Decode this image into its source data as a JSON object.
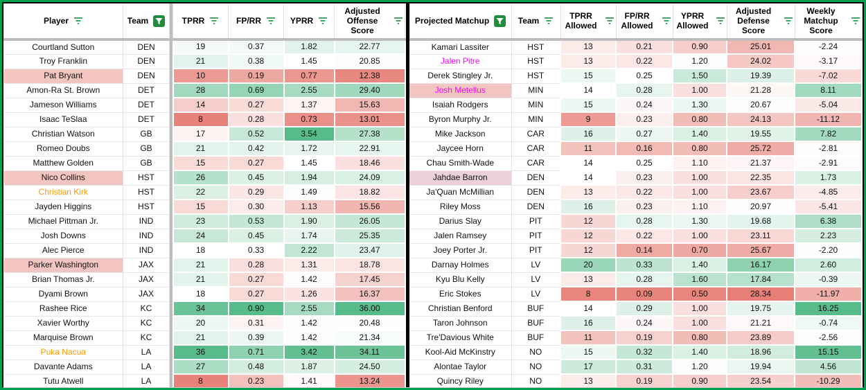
{
  "colors": {
    "scale_red": "#e67c73",
    "scale_green": "#57bb8a",
    "white": "#ffffff",
    "highlight_pink_bg": "#f3c5c0",
    "highlight_purple_bg": "#ead1dc",
    "orange_text": "#ff9900",
    "magenta_text": "#ff00ff",
    "filter_green": "#1e8e3e",
    "outer_border_green": "#00a04e",
    "freeze_bar_gray": "#bdbdbd"
  },
  "left_table": {
    "freeze_sep_after": 1,
    "columns": [
      {
        "key": "player",
        "label": "Player",
        "filter": "lines",
        "width": 172,
        "type": "text"
      },
      {
        "key": "team",
        "label": "Team",
        "filter": "funnel",
        "width": 67,
        "type": "text"
      },
      {
        "key": "tprr",
        "label": "TPRR",
        "filter": "lines",
        "width": 80,
        "type": "num",
        "scale": {
          "min": 7.5,
          "mid": 18,
          "max": 36
        }
      },
      {
        "key": "fprr",
        "label": "FP/RR",
        "filter": "lines",
        "width": 80,
        "type": "num",
        "scale": {
          "min": 0.12,
          "mid": 0.33,
          "max": 0.9
        }
      },
      {
        "key": "yprr",
        "label": "YPRR",
        "filter": "lines",
        "width": 73,
        "type": "num",
        "scale": {
          "min": 0.6,
          "mid": 1.44,
          "max": 3.54
        }
      },
      {
        "key": "adj",
        "label": "Adjusted Offense Score",
        "filter": "lines",
        "width": 102,
        "type": "num",
        "scale": {
          "min": 11.5,
          "mid": 20.6,
          "max": 36
        }
      }
    ],
    "rows": [
      {
        "player": "Courtland Sutton",
        "team": "DEN",
        "tprr": "19",
        "fprr": "0.37",
        "yprr": "1.82",
        "adj": "22.77"
      },
      {
        "player": "Troy Franklin",
        "team": "DEN",
        "tprr": "21",
        "fprr": "0.38",
        "yprr": "1.45",
        "adj": "20.85"
      },
      {
        "player": "Pat Bryant",
        "style": "pink",
        "team": "DEN",
        "tprr": "10",
        "fprr": "0.19",
        "yprr": "0.77",
        "adj": "12.38"
      },
      {
        "player": "Amon-Ra St. Brown",
        "team": "DET",
        "tprr": "28",
        "fprr": "0.69",
        "yprr": "2.55",
        "adj": "29.40"
      },
      {
        "player": "Jameson Williams",
        "team": "DET",
        "tprr": "14",
        "fprr": "0.27",
        "yprr": "1.37",
        "adj": "15.63"
      },
      {
        "player": "Isaac TeSlaa",
        "team": "DET",
        "tprr": "8",
        "fprr": "0.28",
        "yprr": "0.73",
        "adj": "13.01"
      },
      {
        "player": "Christian Watson",
        "team": "GB",
        "tprr": "17",
        "fprr": "0.52",
        "yprr": "3.54",
        "adj": "27.38"
      },
      {
        "player": "Romeo Doubs",
        "team": "GB",
        "tprr": "21",
        "fprr": "0.42",
        "yprr": "1.72",
        "adj": "22.91"
      },
      {
        "player": "Matthew Golden",
        "team": "GB",
        "tprr": "15",
        "fprr": "0.27",
        "yprr": "1.45",
        "adj": "18.46"
      },
      {
        "player": "Nico Collins",
        "style": "pink",
        "team": "HST",
        "tprr": "26",
        "fprr": "0.45",
        "yprr": "1.94",
        "adj": "24.09"
      },
      {
        "player": "Christian Kirk",
        "style": "orange",
        "team": "HST",
        "tprr": "22",
        "fprr": "0.29",
        "yprr": "1.49",
        "adj": "18.82"
      },
      {
        "player": "Jayden Higgins",
        "team": "HST",
        "tprr": "15",
        "fprr": "0.30",
        "yprr": "1.13",
        "adj": "15.56"
      },
      {
        "player": "Michael Pittman Jr.",
        "team": "IND",
        "tprr": "23",
        "fprr": "0.53",
        "yprr": "1.90",
        "adj": "26.05"
      },
      {
        "player": "Josh Downs",
        "team": "IND",
        "tprr": "24",
        "fprr": "0.45",
        "yprr": "1.74",
        "adj": "25.35"
      },
      {
        "player": "Alec Pierce",
        "team": "IND",
        "tprr": "18",
        "fprr": "0.33",
        "yprr": "2.22",
        "adj": "23.47"
      },
      {
        "player": "Parker Washington",
        "style": "pink",
        "team": "JAX",
        "tprr": "21",
        "fprr": "0.28",
        "yprr": "1.31",
        "adj": "18.78"
      },
      {
        "player": "Brian Thomas Jr.",
        "team": "JAX",
        "tprr": "21",
        "fprr": "0.27",
        "yprr": "1.42",
        "adj": "17.45"
      },
      {
        "player": "Dyami Brown",
        "team": "JAX",
        "tprr": "18",
        "fprr": "0.27",
        "yprr": "1.26",
        "adj": "16.37"
      },
      {
        "player": "Rashee Rice",
        "team": "KC",
        "tprr": "34",
        "fprr": "0.90",
        "yprr": "2.55",
        "adj": "36.00"
      },
      {
        "player": "Xavier Worthy",
        "team": "KC",
        "tprr": "20",
        "fprr": "0.31",
        "yprr": "1.42",
        "adj": "20.48"
      },
      {
        "player": "Marquise Brown",
        "team": "KC",
        "tprr": "21",
        "fprr": "0.39",
        "yprr": "1.42",
        "adj": "21.34"
      },
      {
        "player": "Puka Nacua",
        "style": "orange",
        "team": "LA",
        "tprr": "36",
        "fprr": "0.71",
        "yprr": "3.42",
        "adj": "34.11"
      },
      {
        "player": "Davante Adams",
        "team": "LA",
        "tprr": "27",
        "fprr": "0.48",
        "yprr": "1.87",
        "adj": "24.50"
      },
      {
        "player": "Tutu Atwell",
        "team": "LA",
        "tprr": "8",
        "fprr": "0.23",
        "yprr": "1.41",
        "adj": "13.24"
      }
    ]
  },
  "right_table": {
    "columns": [
      {
        "key": "player",
        "label": "Projected Matchup",
        "filter": "funnel",
        "width": 147,
        "type": "text"
      },
      {
        "key": "team",
        "label": "Team",
        "filter": "lines",
        "width": 71,
        "type": "text"
      },
      {
        "key": "tprr",
        "label": "TPRR Allowed",
        "filter": "lines",
        "width": 80,
        "type": "num",
        "scale": {
          "min": 7.5,
          "mid": 14,
          "max": 24
        }
      },
      {
        "key": "fprr",
        "label": "FP/RR Allowed",
        "filter": "lines",
        "width": 82,
        "type": "num",
        "scale": {
          "min": 0.08,
          "mid": 0.25,
          "max": 0.45
        }
      },
      {
        "key": "yprr",
        "label": "YPRR Allowed",
        "filter": "lines",
        "width": 78,
        "type": "num",
        "scale": {
          "min": 0.45,
          "mid": 1.17,
          "max": 2.2
        }
      },
      {
        "key": "def",
        "label": "Adjusted Defense Score",
        "filter": "lines",
        "width": 98,
        "type": "num",
        "scale": {
          "min": 14,
          "mid": 20.8,
          "max": 28.5,
          "reverse": true
        }
      },
      {
        "key": "weekly",
        "label": "Weekly Matchup Score",
        "filter": "lines",
        "width": 97,
        "type": "num",
        "scale": {
          "min": -18,
          "mid": -2.5,
          "max": 16.25
        }
      }
    ],
    "rows": [
      {
        "player": "Kamari Lassiter",
        "team": "HST",
        "tprr": "13",
        "fprr": "0.21",
        "yprr": "0.90",
        "def": "25.01",
        "weekly": "-2.24"
      },
      {
        "player": "Jalen Pitre",
        "style": "magenta",
        "team": "HST",
        "tprr": "13",
        "fprr": "0.22",
        "yprr": "1.20",
        "def": "24.02",
        "weekly": "-3.17"
      },
      {
        "player": "Derek Stingley Jr.",
        "team": "HST",
        "tprr": "15",
        "fprr": "0.25",
        "yprr": "1.50",
        "def": "19.39",
        "weekly": "-7.02"
      },
      {
        "player": "Josh Metellus",
        "style": "pink-magenta",
        "team": "MIN",
        "tprr": "14",
        "fprr": "0.28",
        "yprr": "1.00",
        "def": "21.28",
        "weekly": "8.11"
      },
      {
        "player": "Isaiah Rodgers",
        "team": "MIN",
        "tprr": "15",
        "fprr": "0.24",
        "yprr": "1.30",
        "def": "20.67",
        "weekly": "-5.04"
      },
      {
        "player": "Byron Murphy Jr.",
        "team": "MIN",
        "tprr": "9",
        "fprr": "0.23",
        "yprr": "0.80",
        "def": "24.13",
        "weekly": "-11.12"
      },
      {
        "player": "Mike Jackson",
        "team": "CAR",
        "tprr": "16",
        "fprr": "0.27",
        "yprr": "1.40",
        "def": "19.55",
        "weekly": "7.82"
      },
      {
        "player": "Jaycee Horn",
        "team": "CAR",
        "tprr": "11",
        "fprr": "0.16",
        "yprr": "0.80",
        "def": "25.72",
        "weekly": "-2.81"
      },
      {
        "player": "Chau Smith-Wade",
        "team": "CAR",
        "tprr": "14",
        "fprr": "0.25",
        "yprr": "1.10",
        "def": "21.37",
        "weekly": "-2.91"
      },
      {
        "player": "Jahdae Barron",
        "style": "purple",
        "team": "DEN",
        "tprr": "14",
        "fprr": "0.23",
        "yprr": "1.00",
        "def": "22.35",
        "weekly": "1.73"
      },
      {
        "player": "Ja'Quan McMillian",
        "team": "DEN",
        "tprr": "13",
        "fprr": "0.22",
        "yprr": "1.00",
        "def": "23.67",
        "weekly": "-4.85"
      },
      {
        "player": "Riley Moss",
        "team": "DEN",
        "tprr": "16",
        "fprr": "0.23",
        "yprr": "1.10",
        "def": "20.97",
        "weekly": "-5.41"
      },
      {
        "player": "Darius Slay",
        "team": "PIT",
        "tprr": "12",
        "fprr": "0.28",
        "yprr": "1.30",
        "def": "19.68",
        "weekly": "6.38"
      },
      {
        "player": "Jalen Ramsey",
        "team": "PIT",
        "tprr": "12",
        "fprr": "0.22",
        "yprr": "1.00",
        "def": "23.11",
        "weekly": "2.23"
      },
      {
        "player": "Joey Porter Jr.",
        "team": "PIT",
        "tprr": "12",
        "fprr": "0.14",
        "yprr": "0.70",
        "def": "25.67",
        "weekly": "-2.20"
      },
      {
        "player": "Darnay Holmes",
        "team": "LV",
        "tprr": "20",
        "fprr": "0.33",
        "yprr": "1.40",
        "def": "16.17",
        "weekly": "2.60"
      },
      {
        "player": "Kyu Blu Kelly",
        "team": "LV",
        "tprr": "13",
        "fprr": "0.28",
        "yprr": "1.60",
        "def": "17.84",
        "weekly": "-0.39"
      },
      {
        "player": "Eric Stokes",
        "team": "LV",
        "tprr": "8",
        "fprr": "0.09",
        "yprr": "0.50",
        "def": "28.34",
        "weekly": "-11.97"
      },
      {
        "player": "Christian Benford",
        "team": "BUF",
        "tprr": "14",
        "fprr": "0.29",
        "yprr": "1.00",
        "def": "19.75",
        "weekly": "16.25"
      },
      {
        "player": "Taron Johnson",
        "team": "BUF",
        "tprr": "16",
        "fprr": "0.24",
        "yprr": "1.00",
        "def": "21.21",
        "weekly": "-0.74"
      },
      {
        "player": "Tre'Davious White",
        "team": "BUF",
        "tprr": "11",
        "fprr": "0.19",
        "yprr": "0.80",
        "def": "23.89",
        "weekly": "-2.56"
      },
      {
        "player": "Kool-Aid McKinstry",
        "team": "NO",
        "tprr": "15",
        "fprr": "0.32",
        "yprr": "1.40",
        "def": "18.96",
        "weekly": "15.15"
      },
      {
        "player": "Alontae Taylor",
        "team": "NO",
        "tprr": "17",
        "fprr": "0.31",
        "yprr": "1.20",
        "def": "19.94",
        "weekly": "4.56"
      },
      {
        "player": "Quincy Riley",
        "team": "NO",
        "tprr": "13",
        "fprr": "0.19",
        "yprr": "0.90",
        "def": "23.54",
        "weekly": "-10.29"
      }
    ]
  }
}
